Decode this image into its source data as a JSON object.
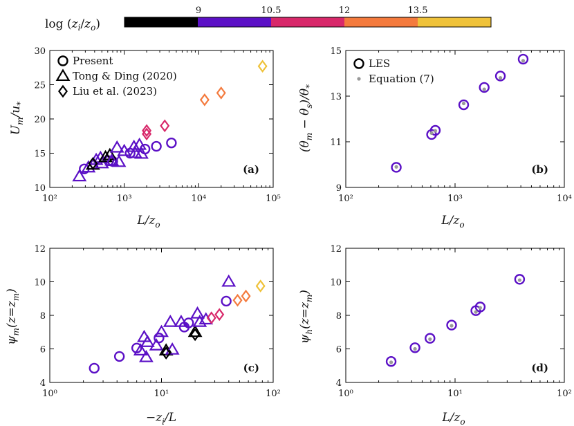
{
  "colorbar": {
    "title": "log (z_i/z_o)",
    "tick_labels": [
      "9",
      "10.5",
      "12",
      "13.5"
    ],
    "segments": [
      {
        "range": [
          7.5,
          9
        ],
        "color": "#000000"
      },
      {
        "range": [
          9,
          10.5
        ],
        "color": "#5b10c6"
      },
      {
        "range": [
          10.5,
          12
        ],
        "color": "#d8286a"
      },
      {
        "range": [
          12,
          13.5
        ],
        "color": "#f47a3d"
      },
      {
        "range": [
          13.5,
          15
        ],
        "color": "#efc23a"
      }
    ]
  },
  "chart_data": [
    {
      "panel": "a",
      "type": "scatter",
      "xscale": "log",
      "xlim": [
        100,
        100000
      ],
      "ylim": [
        10,
        30
      ],
      "xticks": [
        100,
        1000,
        10000,
        100000
      ],
      "xtick_labels": [
        "10²",
        "10³",
        "10⁴",
        "10⁵"
      ],
      "yticks": [
        10,
        15,
        20,
        25,
        30
      ],
      "ytick_labels": [
        "10",
        "15",
        "20",
        "25",
        "30"
      ],
      "xlabel": "L/z_o",
      "ylabel": "U_m/u_*",
      "panel_label": "(a)",
      "legend": [
        {
          "marker": "circle",
          "label": "Present"
        },
        {
          "marker": "triangle",
          "label": "Tong & Ding (2020)"
        },
        {
          "marker": "diamond",
          "label": "Liu et al. (2023)"
        }
      ],
      "series": [
        {
          "name": "Present",
          "marker": "circle",
          "points": [
            {
              "x": 290,
              "y": 12.7,
              "c": "#5b10c6"
            },
            {
              "x": 620,
              "y": 13.9,
              "c": "#5b10c6"
            },
            {
              "x": 700,
              "y": 13.8,
              "c": "#5b10c6"
            },
            {
              "x": 1200,
              "y": 15.0,
              "c": "#5b10c6"
            },
            {
              "x": 1900,
              "y": 15.6,
              "c": "#5b10c6"
            },
            {
              "x": 2700,
              "y": 16.0,
              "c": "#5b10c6"
            },
            {
              "x": 4300,
              "y": 16.5,
              "c": "#5b10c6"
            }
          ]
        },
        {
          "name": "Tong & Ding (2020)",
          "marker": "triangle",
          "points": [
            {
              "x": 250,
              "y": 11.6,
              "c": "#5b10c6"
            },
            {
              "x": 330,
              "y": 12.9,
              "c": "#5b10c6"
            },
            {
              "x": 380,
              "y": 13.3,
              "c": "#000000"
            },
            {
              "x": 420,
              "y": 14.0,
              "c": "#5b10c6"
            },
            {
              "x": 480,
              "y": 14.3,
              "c": "#5b10c6"
            },
            {
              "x": 500,
              "y": 13.5,
              "c": "#5b10c6"
            },
            {
              "x": 560,
              "y": 14.4,
              "c": "#000000"
            },
            {
              "x": 640,
              "y": 14.7,
              "c": "#000000"
            },
            {
              "x": 680,
              "y": 13.9,
              "c": "#5b10c6"
            },
            {
              "x": 800,
              "y": 15.8,
              "c": "#5b10c6"
            },
            {
              "x": 850,
              "y": 13.7,
              "c": "#5b10c6"
            },
            {
              "x": 1000,
              "y": 15.3,
              "c": "#5b10c6"
            },
            {
              "x": 1350,
              "y": 15.9,
              "c": "#5b10c6"
            },
            {
              "x": 1400,
              "y": 15.0,
              "c": "#5b10c6"
            },
            {
              "x": 1600,
              "y": 16.2,
              "c": "#5b10c6"
            },
            {
              "x": 1700,
              "y": 14.9,
              "c": "#5b10c6"
            }
          ]
        },
        {
          "name": "Liu et al. (2023)",
          "marker": "diamond",
          "points": [
            {
              "x": 380,
              "y": 13.5,
              "c": "#000000"
            },
            {
              "x": 2000,
              "y": 17.8,
              "c": "#d8286a"
            },
            {
              "x": 2000,
              "y": 18.3,
              "c": "#d8286a"
            },
            {
              "x": 3500,
              "y": 19.0,
              "c": "#d8286a"
            },
            {
              "x": 12000,
              "y": 22.8,
              "c": "#f47a3d"
            },
            {
              "x": 20000,
              "y": 23.8,
              "c": "#f47a3d"
            },
            {
              "x": 72000,
              "y": 27.7,
              "c": "#efc23a"
            }
          ]
        }
      ]
    },
    {
      "panel": "b",
      "type": "scatter",
      "xscale": "log",
      "xlim": [
        100,
        10000
      ],
      "ylim": [
        9,
        15
      ],
      "xticks": [
        100,
        1000,
        10000
      ],
      "xtick_labels": [
        "10²",
        "10³",
        "10⁴"
      ],
      "yticks": [
        9,
        11,
        13,
        15
      ],
      "ytick_labels": [
        "9",
        "11",
        "13",
        "15"
      ],
      "xlabel": "L/z_o",
      "ylabel": "(θ_m − θ_s)/θ_*",
      "panel_label": "(b)",
      "legend": [
        {
          "marker": "circle",
          "label": "LES"
        },
        {
          "marker": "dot",
          "label": "Equation (7)"
        }
      ],
      "series": [
        {
          "name": "LES",
          "marker": "circle",
          "points": [
            {
              "x": 290,
              "y": 9.88,
              "c": "#5b10c6"
            },
            {
              "x": 610,
              "y": 11.32,
              "c": "#5b10c6"
            },
            {
              "x": 660,
              "y": 11.5,
              "c": "#5b10c6"
            },
            {
              "x": 1200,
              "y": 12.62,
              "c": "#5b10c6"
            },
            {
              "x": 1850,
              "y": 13.38,
              "c": "#5b10c6"
            },
            {
              "x": 2600,
              "y": 13.88,
              "c": "#5b10c6"
            },
            {
              "x": 4200,
              "y": 14.62,
              "c": "#5b10c6"
            }
          ]
        },
        {
          "name": "Equation (7)",
          "marker": "dot",
          "points": [
            {
              "x": 290,
              "y": 9.9,
              "c": "#999999"
            },
            {
              "x": 610,
              "y": 11.38,
              "c": "#999999"
            },
            {
              "x": 660,
              "y": 11.48,
              "c": "#999999"
            },
            {
              "x": 1200,
              "y": 12.68,
              "c": "#999999"
            },
            {
              "x": 1850,
              "y": 13.3,
              "c": "#999999"
            },
            {
              "x": 2600,
              "y": 13.8,
              "c": "#999999"
            },
            {
              "x": 4200,
              "y": 14.55,
              "c": "#999999"
            }
          ]
        }
      ]
    },
    {
      "panel": "c",
      "type": "scatter",
      "xscale": "log",
      "xlim": [
        1,
        100
      ],
      "ylim": [
        4,
        12
      ],
      "xticks": [
        1,
        10,
        100
      ],
      "xtick_labels": [
        "10⁰",
        "10¹",
        "10²"
      ],
      "yticks": [
        4,
        6,
        8,
        10,
        12
      ],
      "ytick_labels": [
        "4",
        "6",
        "8",
        "10",
        "12"
      ],
      "xlabel": "−z_i/L",
      "ylabel": "ψ_m(z=z_m)",
      "panel_label": "(c)",
      "series": [
        {
          "name": "Present",
          "marker": "circle",
          "points": [
            {
              "x": 2.5,
              "y": 4.85,
              "c": "#5b10c6"
            },
            {
              "x": 4.2,
              "y": 5.55,
              "c": "#5b10c6"
            },
            {
              "x": 6.0,
              "y": 6.05,
              "c": "#5b10c6"
            },
            {
              "x": 9.5,
              "y": 6.65,
              "c": "#5b10c6"
            },
            {
              "x": 16,
              "y": 7.3,
              "c": "#5b10c6"
            },
            {
              "x": 17.5,
              "y": 7.55,
              "c": "#5b10c6"
            },
            {
              "x": 38,
              "y": 8.85,
              "c": "#5b10c6"
            }
          ]
        },
        {
          "name": "Tong & Ding (2020)",
          "marker": "triangle",
          "points": [
            {
              "x": 6.5,
              "y": 5.9,
              "c": "#5b10c6"
            },
            {
              "x": 7.0,
              "y": 6.7,
              "c": "#5b10c6"
            },
            {
              "x": 7.3,
              "y": 5.5,
              "c": "#5b10c6"
            },
            {
              "x": 7.5,
              "y": 6.4,
              "c": "#5b10c6"
            },
            {
              "x": 9.0,
              "y": 6.2,
              "c": "#5b10c6"
            },
            {
              "x": 10,
              "y": 7.0,
              "c": "#5b10c6"
            },
            {
              "x": 11,
              "y": 5.9,
              "c": "#000000"
            },
            {
              "x": 12,
              "y": 7.6,
              "c": "#5b10c6"
            },
            {
              "x": 12.5,
              "y": 5.95,
              "c": "#5b10c6"
            },
            {
              "x": 15,
              "y": 7.6,
              "c": "#5b10c6"
            },
            {
              "x": 20,
              "y": 7.0,
              "c": "#000000"
            },
            {
              "x": 21,
              "y": 8.1,
              "c": "#5b10c6"
            },
            {
              "x": 22,
              "y": 7.6,
              "c": "#5b10c6"
            },
            {
              "x": 25,
              "y": 7.75,
              "c": "#5b10c6"
            },
            {
              "x": 40,
              "y": 10.0,
              "c": "#5b10c6"
            }
          ]
        },
        {
          "name": "Liu et al. (2023)",
          "marker": "diamond",
          "points": [
            {
              "x": 11,
              "y": 5.75,
              "c": "#000000"
            },
            {
              "x": 20,
              "y": 6.85,
              "c": "#000000"
            },
            {
              "x": 28,
              "y": 7.85,
              "c": "#d8286a"
            },
            {
              "x": 33,
              "y": 8.05,
              "c": "#d8286a"
            },
            {
              "x": 48,
              "y": 8.9,
              "c": "#f47a3d"
            },
            {
              "x": 57,
              "y": 9.15,
              "c": "#f47a3d"
            },
            {
              "x": 77,
              "y": 9.75,
              "c": "#efc23a"
            }
          ]
        }
      ]
    },
    {
      "panel": "d",
      "type": "scatter",
      "xscale": "log",
      "xlim": [
        1,
        100
      ],
      "ylim": [
        4,
        12
      ],
      "xticks": [
        1,
        10,
        100
      ],
      "xtick_labels": [
        "10⁰",
        "10¹",
        "10²"
      ],
      "yticks": [
        4,
        6,
        8,
        10,
        12
      ],
      "ytick_labels": [
        "4",
        "6",
        "8",
        "10",
        "12"
      ],
      "xlabel": "L/z_o",
      "ylabel": "ψ_h(z=z_m)",
      "panel_label": "(d)",
      "series": [
        {
          "name": "LES",
          "marker": "circle",
          "points": [
            {
              "x": 2.6,
              "y": 5.25,
              "c": "#5b10c6"
            },
            {
              "x": 4.3,
              "y": 6.07,
              "c": "#5b10c6"
            },
            {
              "x": 5.9,
              "y": 6.63,
              "c": "#5b10c6"
            },
            {
              "x": 9.3,
              "y": 7.42,
              "c": "#5b10c6"
            },
            {
              "x": 15.5,
              "y": 8.28,
              "c": "#5b10c6"
            },
            {
              "x": 17,
              "y": 8.5,
              "c": "#5b10c6"
            },
            {
              "x": 39,
              "y": 10.15,
              "c": "#5b10c6"
            }
          ]
        },
        {
          "name": "Equation (7)",
          "marker": "dot",
          "points": [
            {
              "x": 2.6,
              "y": 5.2,
              "c": "#999999"
            },
            {
              "x": 4.3,
              "y": 6.0,
              "c": "#999999"
            },
            {
              "x": 5.9,
              "y": 6.58,
              "c": "#999999"
            },
            {
              "x": 9.3,
              "y": 7.38,
              "c": "#999999"
            },
            {
              "x": 15.5,
              "y": 8.2,
              "c": "#999999"
            },
            {
              "x": 17,
              "y": 8.45,
              "c": "#999999"
            },
            {
              "x": 39,
              "y": 10.1,
              "c": "#999999"
            }
          ]
        }
      ]
    }
  ]
}
